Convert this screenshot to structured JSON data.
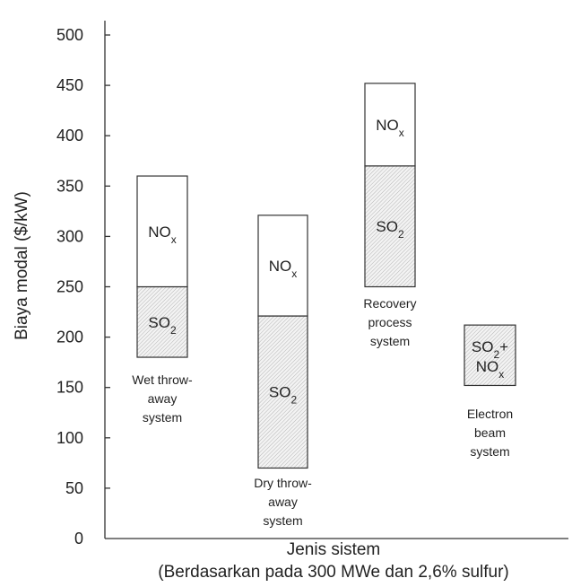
{
  "chart_data": {
    "type": "bar",
    "xlabel": "Jenis sistem",
    "xlabel_note": "(Berdasarkan pada 300 MWe dan 2,6% sulfur)",
    "ylabel": "Biaya modal ($/kW)",
    "ylim": [
      0,
      500
    ],
    "yticks": [
      0,
      50,
      100,
      150,
      200,
      250,
      300,
      350,
      400,
      450,
      500
    ],
    "grid": false,
    "fills": {
      "SO2": "hatched-grey",
      "NOx": "#ffffff"
    },
    "categories": [
      {
        "label_lines": [
          "Wet throw-",
          "away",
          "system"
        ],
        "segments": [
          {
            "component": "SO2",
            "label_main": "SO",
            "label_sub": "2",
            "from": 180,
            "to": 250
          },
          {
            "component": "NOx",
            "label_main": "NO",
            "label_sub": "x",
            "from": 250,
            "to": 360
          }
        ]
      },
      {
        "label_lines": [
          "Dry throw-",
          "away",
          "system"
        ],
        "segments": [
          {
            "component": "SO2",
            "label_main": "SO",
            "label_sub": "2",
            "from": 70,
            "to": 221
          },
          {
            "component": "NOx",
            "label_main": "NO",
            "label_sub": "x",
            "from": 221,
            "to": 321
          }
        ]
      },
      {
        "label_lines": [
          "Recovery",
          "process",
          "system"
        ],
        "segments": [
          {
            "component": "SO2",
            "label_main": "SO",
            "label_sub": "2",
            "from": 250,
            "to": 370
          },
          {
            "component": "NOx",
            "label_main": "NO",
            "label_sub": "x",
            "from": 370,
            "to": 452
          }
        ]
      },
      {
        "label_lines": [
          "Electron",
          "beam",
          "system"
        ],
        "segments": [
          {
            "component": "SO2+NOx",
            "label_lines": [
              [
                "SO",
                "2",
                "+"
              ],
              [
                "NO",
                "x",
                ""
              ]
            ],
            "from": 152,
            "to": 212
          }
        ]
      }
    ]
  }
}
